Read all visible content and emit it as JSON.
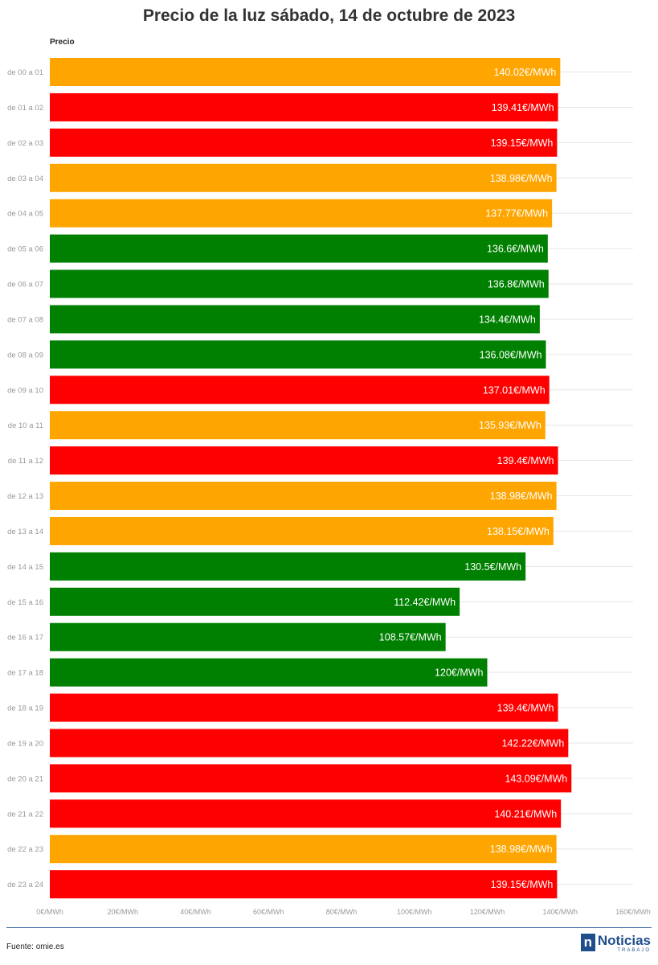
{
  "chart_data": {
    "type": "bar",
    "orientation": "horizontal",
    "title": "Precio de la luz sábado, 14 de octubre de 2023",
    "series_label": "Precio",
    "categories": [
      "de 00 a 01",
      "de 01 a 02",
      "de 02 a 03",
      "de 03 a 04",
      "de 04 a 05",
      "de 05 a 06",
      "de 06 a 07",
      "de 07 a 08",
      "de 08 a 09",
      "de 09 a 10",
      "de 10 a 11",
      "de 11 a 12",
      "de 12 a 13",
      "de 13 a 14",
      "de 14 a 15",
      "de 15 a 16",
      "de 16 a 17",
      "de 17 a 18",
      "de 18 a 19",
      "de 19 a 20",
      "de 20 a 21",
      "de 21 a 22",
      "de 22 a 23",
      "de 23 a 24"
    ],
    "values": [
      140.02,
      139.41,
      139.15,
      138.98,
      137.77,
      136.6,
      136.8,
      134.4,
      136.08,
      137.01,
      135.93,
      139.4,
      138.98,
      138.15,
      130.5,
      112.42,
      108.57,
      120,
      139.4,
      142.22,
      143.09,
      140.21,
      138.98,
      139.15
    ],
    "value_labels": [
      "140.02€/MWh",
      "139.41€/MWh",
      "139.15€/MWh",
      "138.98€/MWh",
      "137.77€/MWh",
      "136.6€/MWh",
      "136.8€/MWh",
      "134.4€/MWh",
      "136.08€/MWh",
      "137.01€/MWh",
      "135.93€/MWh",
      "139.4€/MWh",
      "138.98€/MWh",
      "138.15€/MWh",
      "130.5€/MWh",
      "112.42€/MWh",
      "108.57€/MWh",
      "120€/MWh",
      "139.4€/MWh",
      "142.22€/MWh",
      "143.09€/MWh",
      "140.21€/MWh",
      "138.98€/MWh",
      "139.15€/MWh"
    ],
    "bar_colors": [
      "#ffa500",
      "#ff0000",
      "#ff0000",
      "#ffa500",
      "#ffa500",
      "#008000",
      "#008000",
      "#008000",
      "#008000",
      "#ff0000",
      "#ffa500",
      "#ff0000",
      "#ffa500",
      "#ffa500",
      "#008000",
      "#008000",
      "#008000",
      "#008000",
      "#ff0000",
      "#ff0000",
      "#ff0000",
      "#ff0000",
      "#ffa500",
      "#ff0000"
    ],
    "x_ticks": [
      0,
      20,
      40,
      60,
      80,
      100,
      120,
      140,
      160
    ],
    "x_tick_labels": [
      "0€/MWh",
      "20€/MWh",
      "40€/MWh",
      "60€/MWh",
      "80€/MWh",
      "100€/MWh",
      "120€/MWh",
      "140€/MWh",
      "160€/MWh"
    ],
    "xlim": [
      0,
      160
    ],
    "grid": true
  },
  "footer": {
    "source": "Fuente: omie.es",
    "logo_mark": "n",
    "logo_main": "Noticias",
    "logo_sub": "TRABAJO"
  }
}
